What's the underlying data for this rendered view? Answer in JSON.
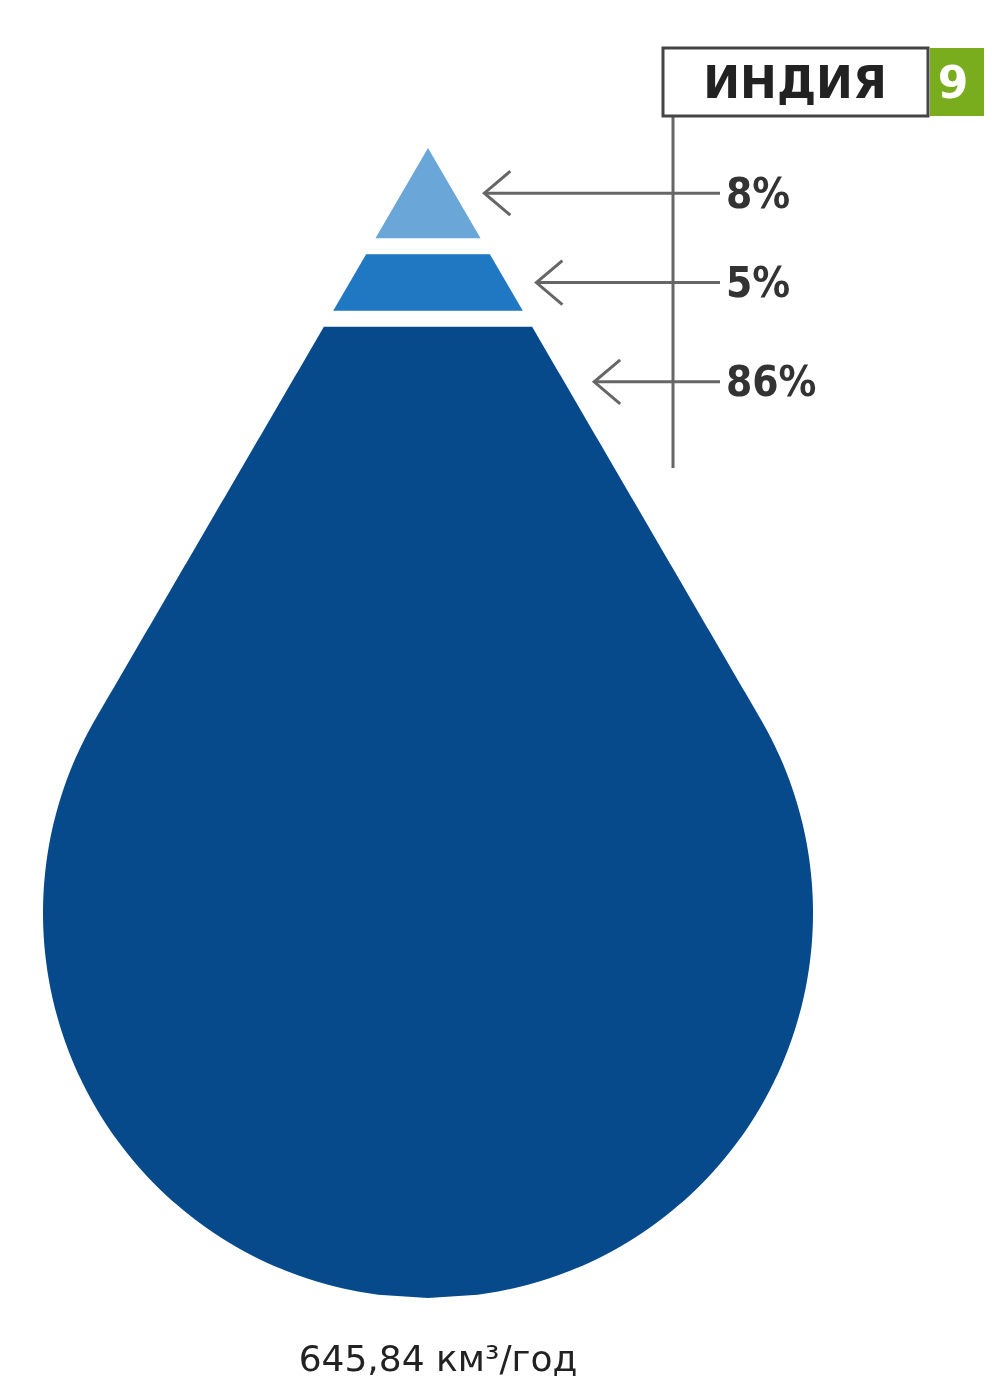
{
  "chart_data": {
    "type": "other",
    "title": "ИНДИЯ",
    "categories": [
      null,
      null,
      null
    ],
    "values": [
      8,
      5,
      86
    ],
    "value_labels": [
      "8%",
      "5%",
      "86%"
    ],
    "colors": [
      "#6aa6d8",
      "#1f78c1",
      "#064a8c"
    ],
    "annotations": [
      "9",
      "645,84 км³/год"
    ]
  }
}
